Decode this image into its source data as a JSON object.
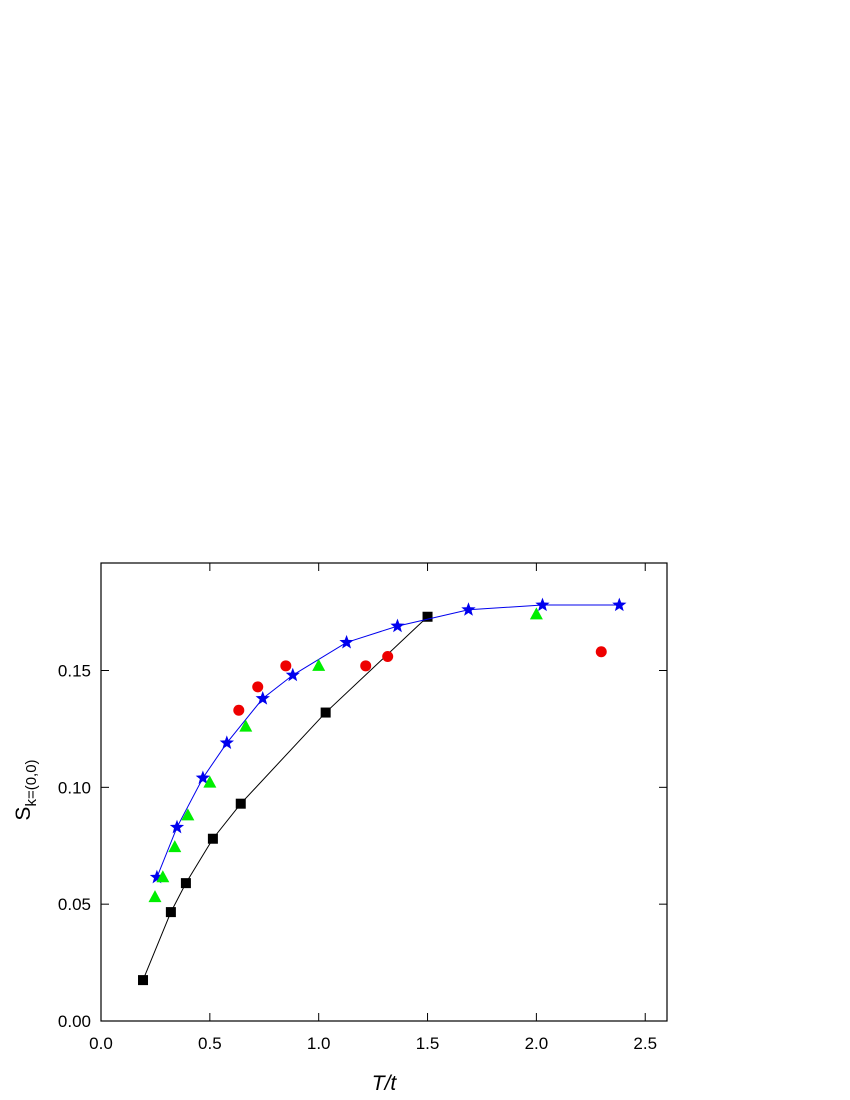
{
  "chart_data": {
    "type": "scatter",
    "x_label": "T/t",
    "y_label": "S",
    "y_label_sub": "k=(0,0)",
    "xlim": [
      0,
      2.6
    ],
    "ylim": [
      0,
      0.196
    ],
    "xticks": [
      {
        "value": 0,
        "label": "0.0"
      },
      {
        "value": 0.5,
        "label": "0.5"
      },
      {
        "value": 1,
        "label": "1.0"
      },
      {
        "value": 1.5,
        "label": "1.5"
      },
      {
        "value": 2,
        "label": "2.0"
      },
      {
        "value": 2.5,
        "label": "2.5"
      }
    ],
    "yticks": [
      {
        "value": 0,
        "label": "0.00"
      },
      {
        "value": 0.05,
        "label": "0.05"
      },
      {
        "value": 0.1,
        "label": "0.10"
      },
      {
        "value": 0.15,
        "label": "0.15"
      }
    ],
    "series": [
      {
        "color": "#000000",
        "marker": "square",
        "line": true,
        "x": [
          0.193,
          0.321,
          0.39,
          0.514,
          0.642,
          1.032,
          1.5
        ],
        "values": [
          0.0175,
          0.0466,
          0.059,
          0.078,
          0.093,
          0.132,
          0.173
        ]
      },
      {
        "color": "#0000ee",
        "marker": "star",
        "line": true,
        "x": [
          0.257,
          0.349,
          0.468,
          0.578,
          0.743,
          0.881,
          1.128,
          1.362,
          1.688,
          2.028,
          2.381
        ],
        "values": [
          0.0615,
          0.0829,
          0.104,
          0.119,
          0.138,
          0.148,
          0.162,
          0.169,
          0.176,
          0.178,
          0.178
        ]
      },
      {
        "color": "#00ee00",
        "marker": "triangle",
        "line": false,
        "x": [
          0.248,
          0.284,
          0.339,
          0.399,
          0.5,
          0.665,
          1.0,
          2.0
        ],
        "values": [
          0.053,
          0.0615,
          0.0744,
          0.088,
          0.102,
          0.126,
          0.152,
          0.174
        ]
      },
      {
        "color": "#ee0000",
        "marker": "circle",
        "line": false,
        "x": [
          0.633,
          0.72,
          0.849,
          1.216,
          1.317,
          2.298
        ],
        "values": [
          0.133,
          0.143,
          0.152,
          0.152,
          0.156,
          0.158
        ]
      }
    ]
  }
}
